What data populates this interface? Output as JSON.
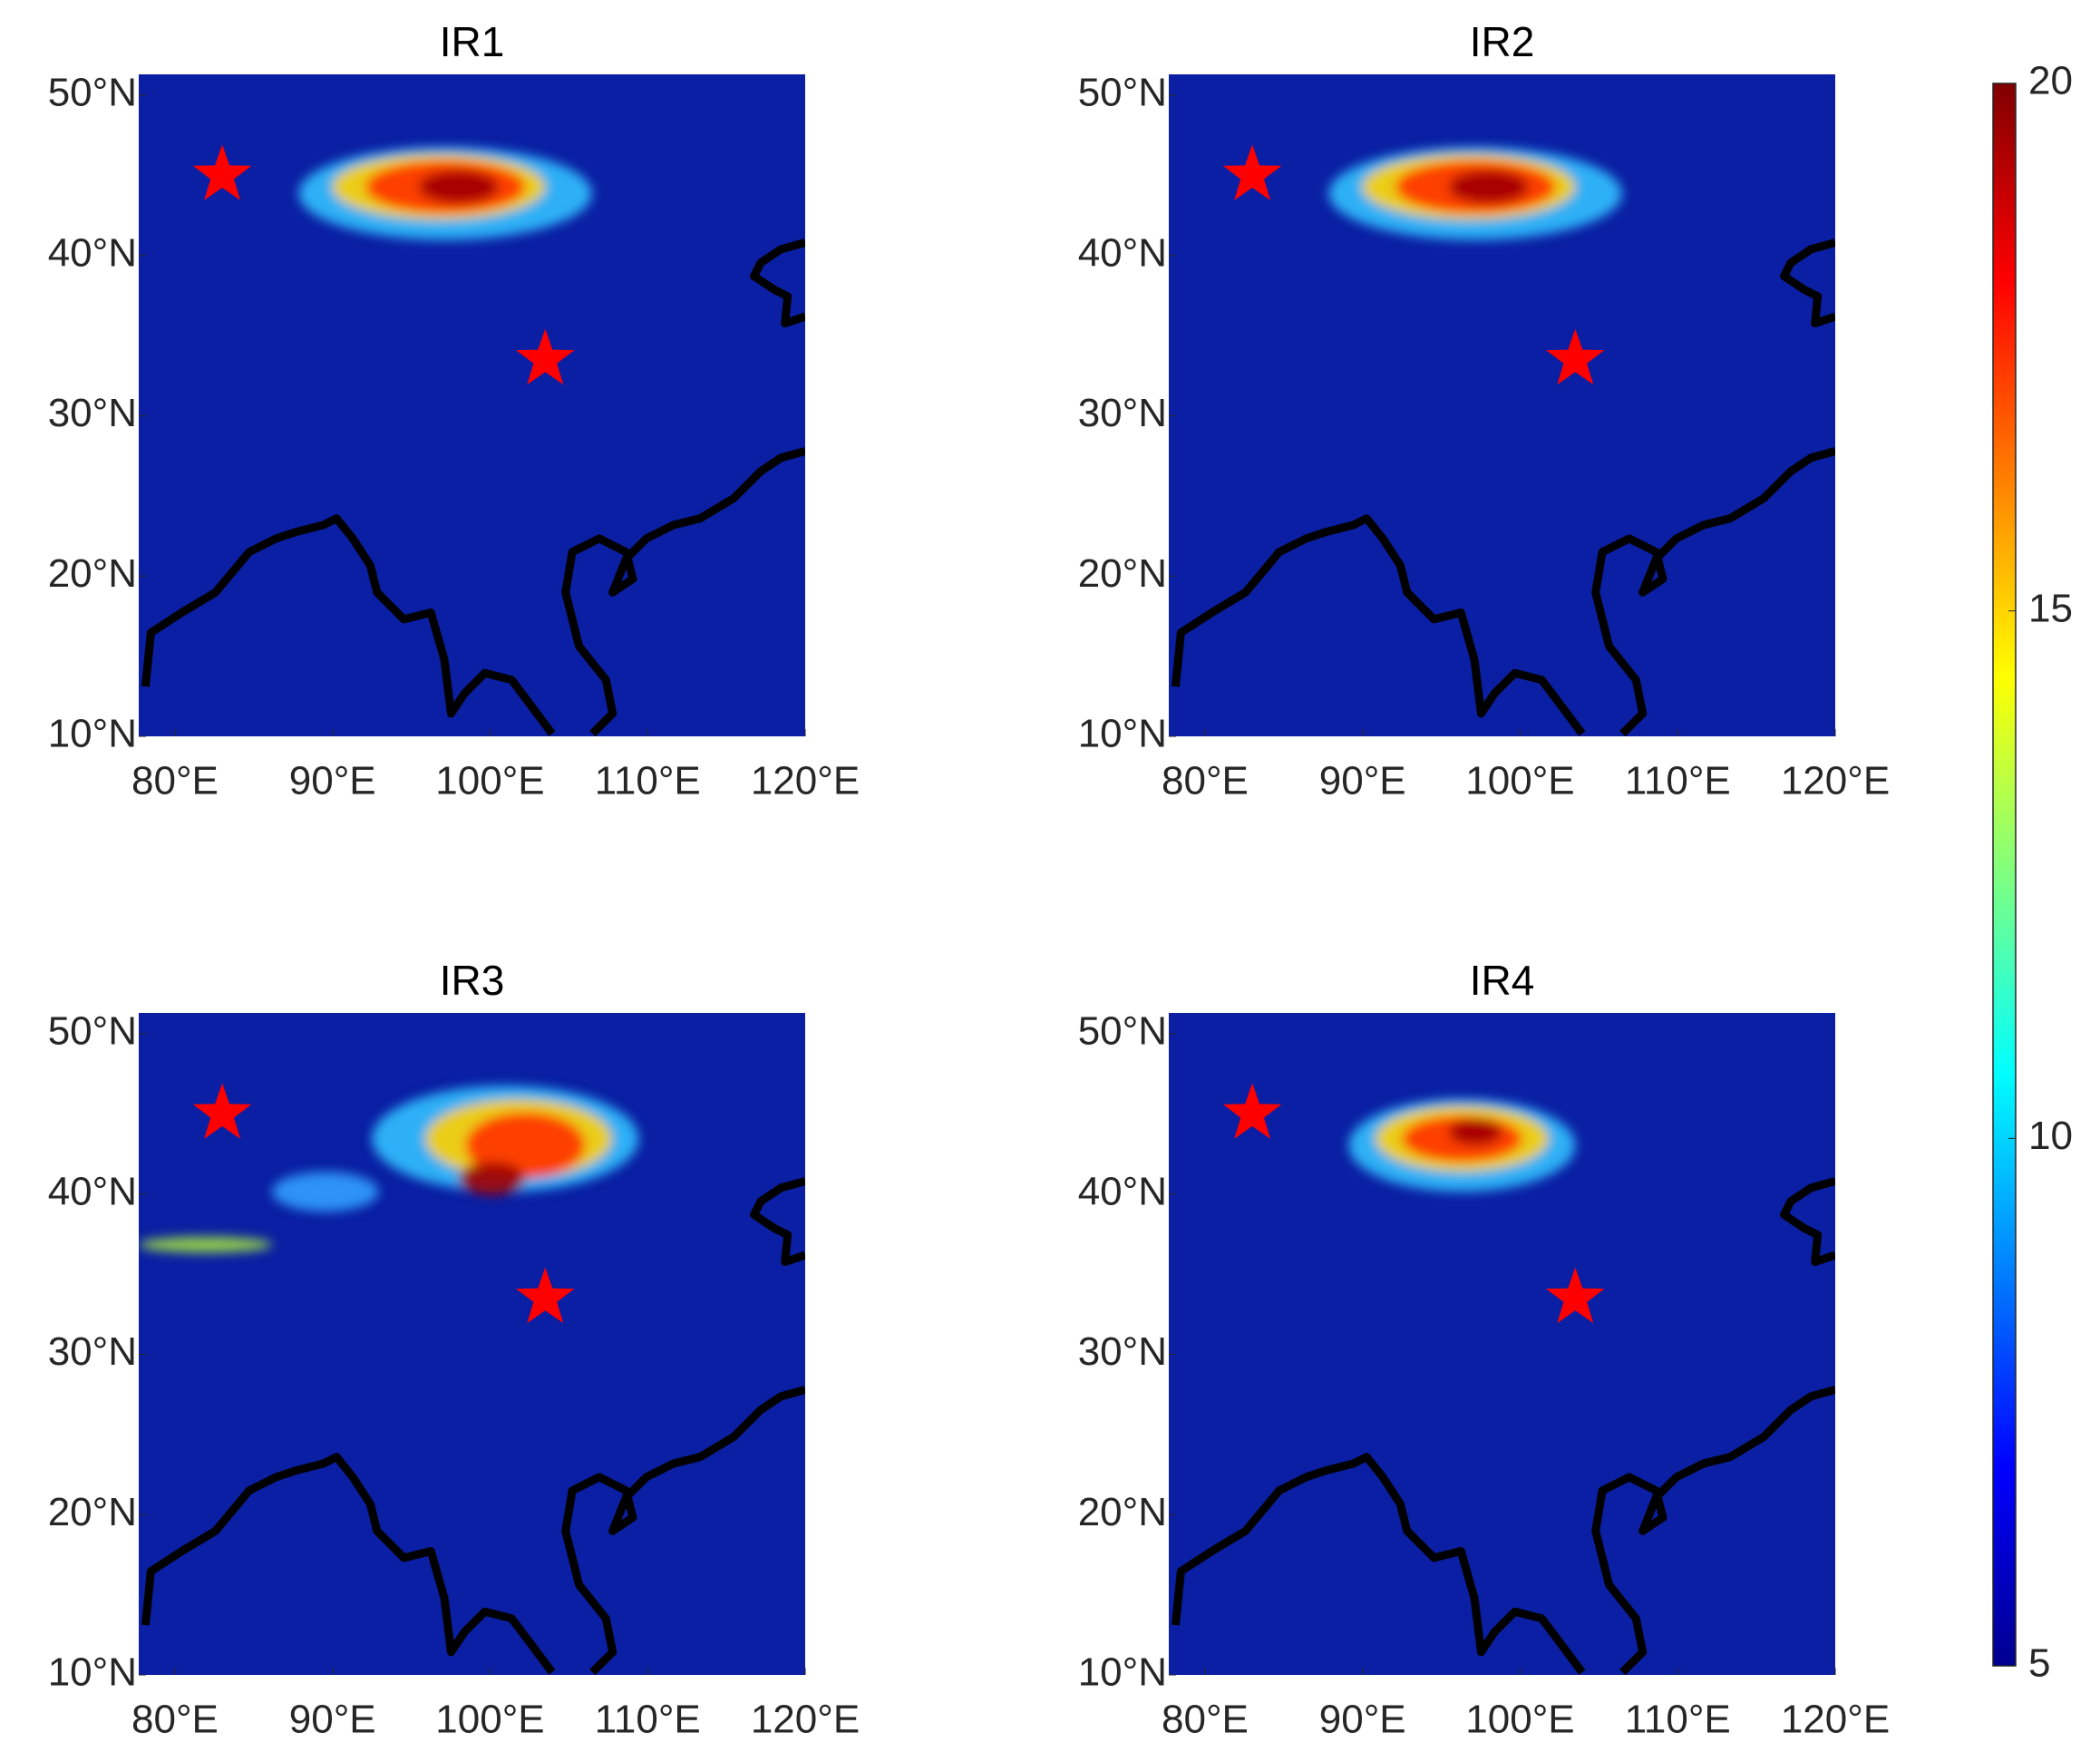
{
  "chart_data": [
    {
      "type": "map",
      "title": "IR1",
      "xlim": [
        77.7,
        120
      ],
      "ylim": [
        10,
        51.3
      ],
      "xticks": [
        {
          "value": 80,
          "label": "80°E"
        },
        {
          "value": 90,
          "label": "90°E"
        },
        {
          "value": 100,
          "label": "100°E"
        },
        {
          "value": 110,
          "label": "110°E"
        },
        {
          "value": 120,
          "label": "120°E"
        }
      ],
      "yticks": [
        {
          "value": 10,
          "label": "10°N"
        },
        {
          "value": 20,
          "label": "20°N"
        },
        {
          "value": 30,
          "label": "30°N"
        },
        {
          "value": 40,
          "label": "40°N"
        },
        {
          "value": 50,
          "label": "50°N"
        }
      ],
      "markers": {
        "x": [
          83,
          103.5
        ],
        "y": [
          45,
          33.5
        ],
        "color": "#ff0000"
      }
    },
    {
      "type": "map",
      "title": "IR2",
      "xlim": [
        77.7,
        120
      ],
      "ylim": [
        10,
        51.3
      ],
      "xticks": [
        {
          "value": 80,
          "label": "80°E"
        },
        {
          "value": 90,
          "label": "90°E"
        },
        {
          "value": 100,
          "label": "100°E"
        },
        {
          "value": 110,
          "label": "110°E"
        },
        {
          "value": 120,
          "label": "120°E"
        }
      ],
      "yticks": [
        {
          "value": 10,
          "label": "10°N"
        },
        {
          "value": 20,
          "label": "20°N"
        },
        {
          "value": 30,
          "label": "30°N"
        },
        {
          "value": 40,
          "label": "40°N"
        },
        {
          "value": 50,
          "label": "50°N"
        }
      ],
      "markers": {
        "x": [
          83,
          103.5
        ],
        "y": [
          45,
          33.5
        ],
        "color": "#ff0000"
      }
    },
    {
      "type": "map",
      "title": "IR3",
      "xlim": [
        77.7,
        120
      ],
      "ylim": [
        10,
        51.3
      ],
      "xticks": [
        {
          "value": 80,
          "label": "80°E"
        },
        {
          "value": 90,
          "label": "90°E"
        },
        {
          "value": 100,
          "label": "100°E"
        },
        {
          "value": 110,
          "label": "110°E"
        },
        {
          "value": 120,
          "label": "120°E"
        }
      ],
      "yticks": [
        {
          "value": 10,
          "label": "10°N"
        },
        {
          "value": 20,
          "label": "20°N"
        },
        {
          "value": 30,
          "label": "30°N"
        },
        {
          "value": 40,
          "label": "40°N"
        },
        {
          "value": 50,
          "label": "50°N"
        }
      ],
      "markers": {
        "x": [
          83,
          103.5
        ],
        "y": [
          45,
          33.5
        ],
        "color": "#ff0000"
      }
    },
    {
      "type": "map",
      "title": "IR4",
      "xlim": [
        77.7,
        120
      ],
      "ylim": [
        10,
        51.3
      ],
      "xticks": [
        {
          "value": 80,
          "label": "80°E"
        },
        {
          "value": 90,
          "label": "90°E"
        },
        {
          "value": 100,
          "label": "100°E"
        },
        {
          "value": 110,
          "label": "110°E"
        },
        {
          "value": 120,
          "label": "120°E"
        }
      ],
      "yticks": [
        {
          "value": 10,
          "label": "10°N"
        },
        {
          "value": 20,
          "label": "20°N"
        },
        {
          "value": 30,
          "label": "30°N"
        },
        {
          "value": 40,
          "label": "40°N"
        },
        {
          "value": 50,
          "label": "50°N"
        }
      ],
      "markers": {
        "x": [
          83,
          103.5
        ],
        "y": [
          45,
          33.5
        ],
        "color": "#ff0000"
      }
    },
    {
      "type": "colorbar",
      "clim": [
        5,
        20
      ],
      "ticks": [
        5,
        10,
        15,
        20
      ]
    }
  ]
}
